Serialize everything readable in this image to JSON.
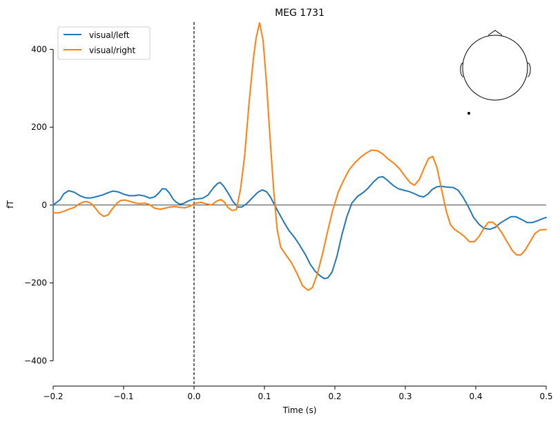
{
  "chart_data": {
    "type": "line",
    "title": "MEG 1731",
    "xlabel": "Time (s)",
    "ylabel": "fT",
    "xlim": [
      -0.2,
      0.5
    ],
    "ylim": [
      -465,
      470
    ],
    "xticks": [
      -0.2,
      -0.1,
      0.0,
      0.1,
      0.2,
      0.3,
      0.4,
      0.5
    ],
    "xtick_labels": [
      "−0.2",
      "−0.1",
      "0.0",
      "0.1",
      "0.2",
      "0.3",
      "0.4",
      "0.5"
    ],
    "yticks": [
      -400,
      -200,
      0,
      200,
      400
    ],
    "ytick_labels": [
      "−400",
      "−200",
      "0",
      "200",
      "400"
    ],
    "stim_line_x": 0.0,
    "zero_line_y": 0,
    "grid": false,
    "legend_position": "upper-left",
    "sensor_inset": "head outline with sensor location, top-right",
    "series": [
      {
        "name": "visual/left",
        "color": "#1f77b4",
        "points": [
          [
            -0.2,
            0
          ],
          [
            -0.19,
            14
          ],
          [
            -0.185,
            29
          ],
          [
            -0.178,
            37
          ],
          [
            -0.17,
            33
          ],
          [
            -0.162,
            24
          ],
          [
            -0.155,
            19
          ],
          [
            -0.148,
            18
          ],
          [
            -0.14,
            21
          ],
          [
            -0.13,
            26
          ],
          [
            -0.122,
            32
          ],
          [
            -0.115,
            36
          ],
          [
            -0.108,
            34
          ],
          [
            -0.1,
            28
          ],
          [
            -0.092,
            24
          ],
          [
            -0.085,
            24
          ],
          [
            -0.078,
            26
          ],
          [
            -0.07,
            23
          ],
          [
            -0.063,
            18
          ],
          [
            -0.056,
            21
          ],
          [
            -0.05,
            31
          ],
          [
            -0.045,
            42
          ],
          [
            -0.04,
            41
          ],
          [
            -0.035,
            31
          ],
          [
            -0.03,
            16
          ],
          [
            -0.025,
            7
          ],
          [
            -0.02,
            2
          ],
          [
            -0.015,
            4
          ],
          [
            -0.01,
            9
          ],
          [
            -0.003,
            14
          ],
          [
            0.005,
            16
          ],
          [
            0.012,
            17
          ],
          [
            0.02,
            26
          ],
          [
            0.027,
            43
          ],
          [
            0.033,
            55
          ],
          [
            0.037,
            58
          ],
          [
            0.042,
            49
          ],
          [
            0.048,
            32
          ],
          [
            0.055,
            10
          ],
          [
            0.062,
            -5
          ],
          [
            0.068,
            -5
          ],
          [
            0.075,
            4
          ],
          [
            0.082,
            17
          ],
          [
            0.09,
            32
          ],
          [
            0.097,
            39
          ],
          [
            0.103,
            34
          ],
          [
            0.108,
            22
          ],
          [
            0.113,
            5
          ],
          [
            0.12,
            -19
          ],
          [
            0.128,
            -45
          ],
          [
            0.135,
            -66
          ],
          [
            0.143,
            -84
          ],
          [
            0.15,
            -103
          ],
          [
            0.158,
            -127
          ],
          [
            0.165,
            -152
          ],
          [
            0.172,
            -170
          ],
          [
            0.18,
            -183
          ],
          [
            0.185,
            -189
          ],
          [
            0.19,
            -187
          ],
          [
            0.196,
            -172
          ],
          [
            0.203,
            -131
          ],
          [
            0.21,
            -76
          ],
          [
            0.217,
            -30
          ],
          [
            0.224,
            5
          ],
          [
            0.232,
            22
          ],
          [
            0.24,
            32
          ],
          [
            0.247,
            43
          ],
          [
            0.255,
            60
          ],
          [
            0.262,
            71
          ],
          [
            0.268,
            73
          ],
          [
            0.275,
            63
          ],
          [
            0.283,
            50
          ],
          [
            0.29,
            42
          ],
          [
            0.298,
            38
          ],
          [
            0.305,
            35
          ],
          [
            0.312,
            30
          ],
          [
            0.32,
            23
          ],
          [
            0.326,
            21
          ],
          [
            0.332,
            28
          ],
          [
            0.338,
            40
          ],
          [
            0.345,
            47
          ],
          [
            0.352,
            48
          ],
          [
            0.36,
            46
          ],
          [
            0.368,
            45
          ],
          [
            0.375,
            38
          ],
          [
            0.382,
            20
          ],
          [
            0.39,
            -6
          ],
          [
            0.397,
            -32
          ],
          [
            0.405,
            -50
          ],
          [
            0.412,
            -60
          ],
          [
            0.42,
            -62
          ],
          [
            0.428,
            -57
          ],
          [
            0.435,
            -46
          ],
          [
            0.443,
            -37
          ],
          [
            0.45,
            -30
          ],
          [
            0.457,
            -30
          ],
          [
            0.465,
            -37
          ],
          [
            0.473,
            -45
          ],
          [
            0.48,
            -45
          ],
          [
            0.488,
            -40
          ],
          [
            0.495,
            -35
          ],
          [
            0.5,
            -32
          ]
        ]
      },
      {
        "name": "visual/right",
        "color": "#ff7f0e",
        "points": [
          [
            -0.2,
            -20
          ],
          [
            -0.192,
            -20
          ],
          [
            -0.185,
            -16
          ],
          [
            -0.178,
            -11
          ],
          [
            -0.17,
            -6
          ],
          [
            -0.163,
            3
          ],
          [
            -0.157,
            8
          ],
          [
            -0.152,
            9
          ],
          [
            -0.146,
            4
          ],
          [
            -0.14,
            -8
          ],
          [
            -0.134,
            -22
          ],
          [
            -0.128,
            -29
          ],
          [
            -0.122,
            -25
          ],
          [
            -0.116,
            -10
          ],
          [
            -0.11,
            4
          ],
          [
            -0.104,
            12
          ],
          [
            -0.098,
            13
          ],
          [
            -0.09,
            9
          ],
          [
            -0.083,
            5
          ],
          [
            -0.076,
            4
          ],
          [
            -0.07,
            5
          ],
          [
            -0.063,
            1
          ],
          [
            -0.056,
            -8
          ],
          [
            -0.048,
            -11
          ],
          [
            -0.041,
            -8
          ],
          [
            -0.034,
            -5
          ],
          [
            -0.027,
            -4
          ],
          [
            -0.02,
            -6
          ],
          [
            -0.013,
            -7
          ],
          [
            -0.006,
            -3
          ],
          [
            0.002,
            5
          ],
          [
            0.01,
            7
          ],
          [
            0.018,
            3
          ],
          [
            0.025,
            0
          ],
          [
            0.032,
            10
          ],
          [
            0.038,
            14
          ],
          [
            0.043,
            8
          ],
          [
            0.048,
            -6
          ],
          [
            0.054,
            -14
          ],
          [
            0.06,
            -12
          ],
          [
            0.066,
            40
          ],
          [
            0.072,
            128
          ],
          [
            0.078,
            260
          ],
          [
            0.084,
            372
          ],
          [
            0.088,
            428
          ],
          [
            0.093,
            468
          ],
          [
            0.098,
            424
          ],
          [
            0.103,
            310
          ],
          [
            0.108,
            170
          ],
          [
            0.113,
            40
          ],
          [
            0.118,
            -62
          ],
          [
            0.123,
            -108
          ],
          [
            0.13,
            -127
          ],
          [
            0.138,
            -147
          ],
          [
            0.146,
            -175
          ],
          [
            0.154,
            -207
          ],
          [
            0.162,
            -219
          ],
          [
            0.168,
            -212
          ],
          [
            0.175,
            -178
          ],
          [
            0.183,
            -121
          ],
          [
            0.19,
            -65
          ],
          [
            0.197,
            -13
          ],
          [
            0.205,
            34
          ],
          [
            0.212,
            62
          ],
          [
            0.22,
            90
          ],
          [
            0.228,
            108
          ],
          [
            0.236,
            122
          ],
          [
            0.244,
            133
          ],
          [
            0.252,
            141
          ],
          [
            0.26,
            140
          ],
          [
            0.268,
            131
          ],
          [
            0.276,
            118
          ],
          [
            0.284,
            107
          ],
          [
            0.292,
            93
          ],
          [
            0.3,
            73
          ],
          [
            0.307,
            57
          ],
          [
            0.313,
            51
          ],
          [
            0.32,
            66
          ],
          [
            0.327,
            96
          ],
          [
            0.333,
            120
          ],
          [
            0.339,
            125
          ],
          [
            0.345,
            96
          ],
          [
            0.352,
            36
          ],
          [
            0.358,
            -15
          ],
          [
            0.364,
            -50
          ],
          [
            0.37,
            -63
          ],
          [
            0.377,
            -71
          ],
          [
            0.384,
            -81
          ],
          [
            0.391,
            -94
          ],
          [
            0.398,
            -94
          ],
          [
            0.405,
            -80
          ],
          [
            0.412,
            -58
          ],
          [
            0.418,
            -44
          ],
          [
            0.424,
            -44
          ],
          [
            0.43,
            -53
          ],
          [
            0.437,
            -71
          ],
          [
            0.445,
            -96
          ],
          [
            0.452,
            -117
          ],
          [
            0.458,
            -128
          ],
          [
            0.464,
            -128
          ],
          [
            0.47,
            -116
          ],
          [
            0.477,
            -95
          ],
          [
            0.484,
            -73
          ],
          [
            0.491,
            -64
          ],
          [
            0.5,
            -63
          ]
        ]
      }
    ]
  }
}
